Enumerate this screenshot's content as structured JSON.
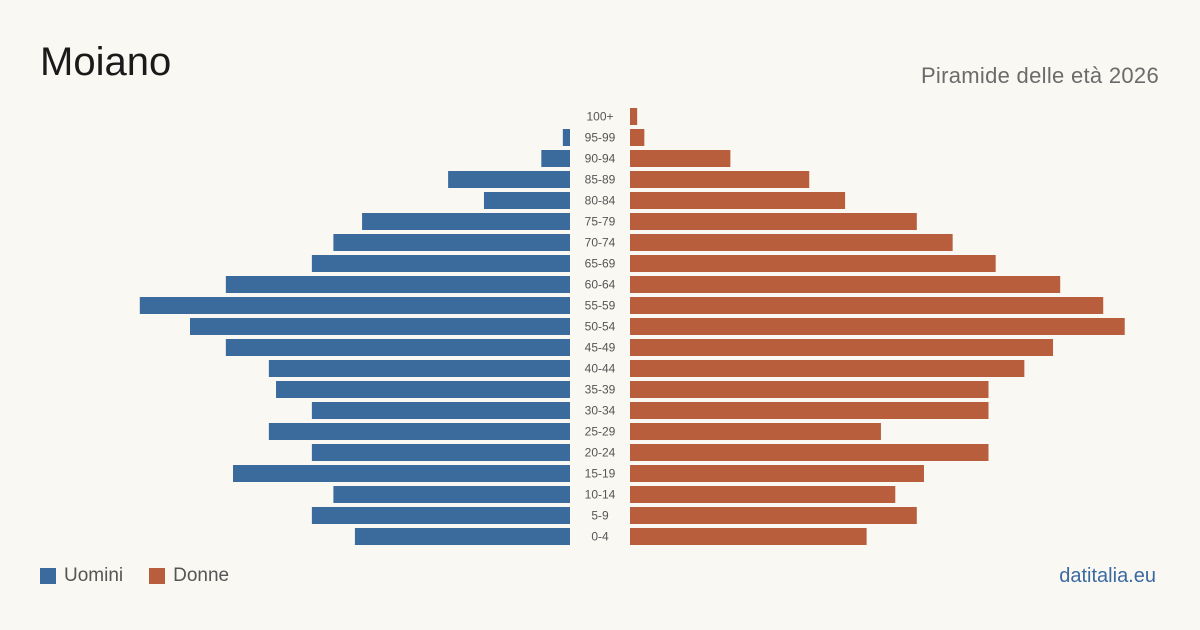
{
  "header": {
    "title": "Moiano",
    "subtitle": "Piramide delle età 2026"
  },
  "legend": {
    "men_label": "Uomini",
    "women_label": "Donne"
  },
  "brand": "datitalia.eu",
  "colors": {
    "men": "#3b6a9c",
    "women": "#b95e3c",
    "background": "#faf8f3"
  },
  "chart_data": {
    "type": "bar",
    "orientation": "horizontal-pyramid",
    "categories": [
      "100+",
      "95-99",
      "90-94",
      "85-89",
      "80-84",
      "75-79",
      "70-74",
      "65-69",
      "60-64",
      "55-59",
      "50-54",
      "45-49",
      "40-44",
      "35-39",
      "30-34",
      "25-29",
      "20-24",
      "15-19",
      "10-14",
      "5-9",
      "0-4"
    ],
    "series": [
      {
        "name": "Uomini",
        "values": [
          0,
          1,
          4,
          17,
          12,
          29,
          33,
          36,
          48,
          60,
          53,
          48,
          42,
          41,
          36,
          42,
          36,
          47,
          33,
          36,
          30
        ]
      },
      {
        "name": "Donne",
        "values": [
          1,
          2,
          14,
          25,
          30,
          40,
          45,
          51,
          60,
          66,
          69,
          59,
          55,
          50,
          50,
          35,
          50,
          41,
          37,
          40,
          33
        ]
      }
    ]
  }
}
